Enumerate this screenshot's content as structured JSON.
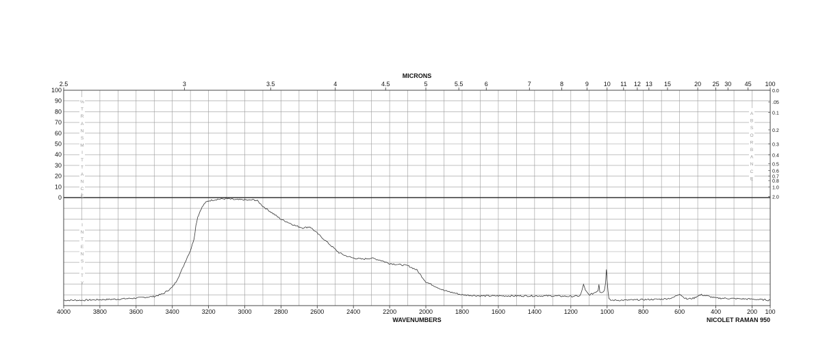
{
  "chart_data": {
    "type": "line",
    "top_axis_title": "MICRONS",
    "xlabel": "WAVENUMBERS",
    "instrument": "NICOLET RAMAN 950",
    "xlim": [
      4000,
      100
    ],
    "x_major_ticks": [
      4000,
      3800,
      3600,
      3400,
      3200,
      3000,
      2800,
      2600,
      2400,
      2200,
      2000,
      1800,
      1600,
      1400,
      1200,
      1000,
      800,
      600,
      400,
      200,
      100
    ],
    "micron_ticks": [
      "2.5",
      "3",
      "3.5",
      "4",
      "4.5",
      "5",
      "5.5",
      "6",
      "7",
      "8",
      "9",
      "10",
      "11",
      "12",
      "13",
      "15",
      "20",
      "25",
      "30",
      "45",
      "100"
    ],
    "transmittance_label": "% TRANSMITTANCE",
    "transmittance_ticks": [
      "100",
      "90",
      "80",
      "70",
      "60",
      "50",
      "40",
      "30",
      "20",
      "10",
      "0"
    ],
    "absorbance_label": "ABSORBANCE",
    "absorbance_ticks": [
      "0.0",
      ".05",
      "0.1",
      "0.2",
      "0.3",
      "0.4",
      "0.5",
      "0.6",
      "0.7",
      "0.8",
      "1.0",
      "2.0"
    ],
    "intensity_label": "INTENSITY",
    "ylim": [
      0,
      100
    ],
    "grid": true,
    "series": [
      {
        "line_color": "#333333",
        "x": [
          4000,
          3900,
          3800,
          3700,
          3600,
          3500,
          3450,
          3400,
          3380,
          3350,
          3320,
          3300,
          3280,
          3270,
          3260,
          3240,
          3220,
          3200,
          3150,
          3100,
          3050,
          3000,
          2980,
          2950,
          2930,
          2900,
          2850,
          2800,
          2760,
          2720,
          2680,
          2640,
          2600,
          2560,
          2520,
          2480,
          2440,
          2400,
          2350,
          2300,
          2250,
          2200,
          2150,
          2100,
          2050,
          2000,
          1950,
          1900,
          1800,
          1700,
          1600,
          1500,
          1400,
          1300,
          1200,
          1150,
          1140,
          1130,
          1120,
          1100,
          1080,
          1060,
          1050,
          1045,
          1040,
          1030,
          1015,
          1008,
          1004,
          1000,
          995,
          990,
          980,
          950,
          900,
          800,
          700,
          640,
          610,
          600,
          580,
          560,
          520,
          500,
          480,
          450,
          400,
          300,
          200,
          100
        ],
        "y": [
          5,
          5,
          5.5,
          6,
          7,
          8.5,
          11,
          17,
          22,
          32,
          44,
          51,
          62,
          74,
          82,
          90,
          95,
          97,
          98.5,
          99,
          98,
          98,
          97.5,
          98,
          97,
          92,
          86,
          80,
          77,
          74,
          72,
          73,
          67,
          61,
          55,
          49,
          46,
          44,
          43,
          44,
          42,
          39,
          38,
          37,
          33,
          22,
          18,
          14,
          10,
          9,
          9,
          9,
          9,
          9,
          8.5,
          9,
          13,
          20,
          14,
          10,
          11,
          13,
          14,
          20,
          13,
          12,
          14,
          22,
          34,
          24,
          14,
          6,
          5,
          5,
          5,
          5.5,
          6,
          7,
          10,
          11,
          8,
          6,
          7,
          9,
          10,
          9,
          7,
          6.5,
          6,
          5
        ]
      }
    ]
  }
}
